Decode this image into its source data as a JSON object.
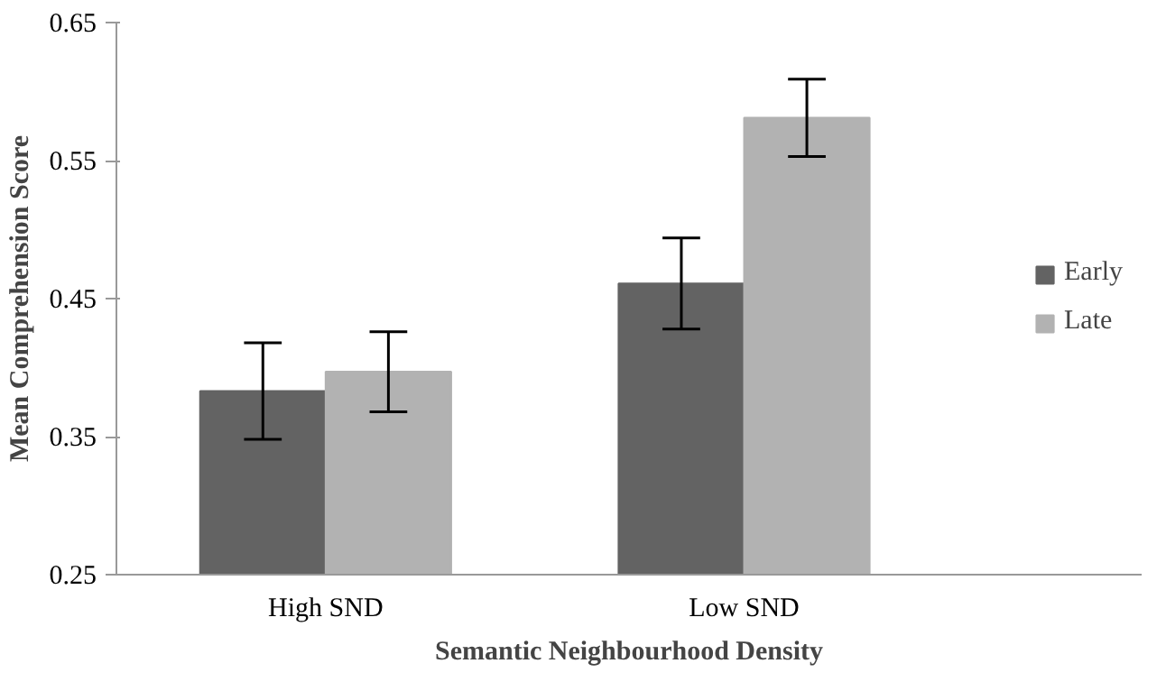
{
  "chart_data": {
    "type": "bar",
    "xlabel": "Semantic Neighbourhood Density",
    "ylabel": "Mean Comprehension Score",
    "categories": [
      "High SND",
      "Low SND"
    ],
    "series": [
      {
        "name": "Early",
        "color": "#636363",
        "values": [
          0.383,
          0.461
        ],
        "errors": [
          0.035,
          0.033
        ]
      },
      {
        "name": "Late",
        "color": "#b2b2b2",
        "values": [
          0.397,
          0.581
        ],
        "errors": [
          0.029,
          0.028
        ]
      }
    ],
    "ylim": [
      0.25,
      0.65
    ],
    "yticks": [
      0.25,
      0.35,
      0.45,
      0.55,
      0.65
    ],
    "grid": false,
    "legend": "right"
  }
}
